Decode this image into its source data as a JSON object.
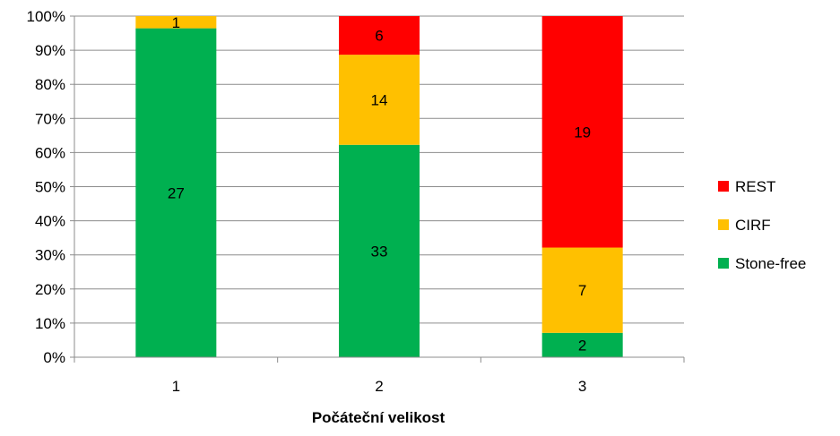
{
  "chart_data": {
    "type": "bar",
    "stacked": true,
    "normalized": true,
    "categories": [
      "1",
      "2",
      "3"
    ],
    "series": [
      {
        "name": "Stone-free",
        "values": [
          27,
          33,
          2
        ],
        "color": "#00b050"
      },
      {
        "name": "CIRF",
        "values": [
          1,
          14,
          7
        ],
        "color": "#ffc000"
      },
      {
        "name": "REST",
        "values": [
          0,
          6,
          19
        ],
        "color": "#ff0000"
      }
    ],
    "y_ticks": [
      "0%",
      "10%",
      "20%",
      "30%",
      "40%",
      "50%",
      "60%",
      "70%",
      "80%",
      "90%",
      "100%"
    ],
    "xlabel": "Počáteční velikost",
    "ylabel": "",
    "ylim": [
      0,
      100
    ],
    "grid": true,
    "legend_position": "right",
    "legend_order": [
      "REST",
      "CIRF",
      "Stone-free"
    ]
  }
}
